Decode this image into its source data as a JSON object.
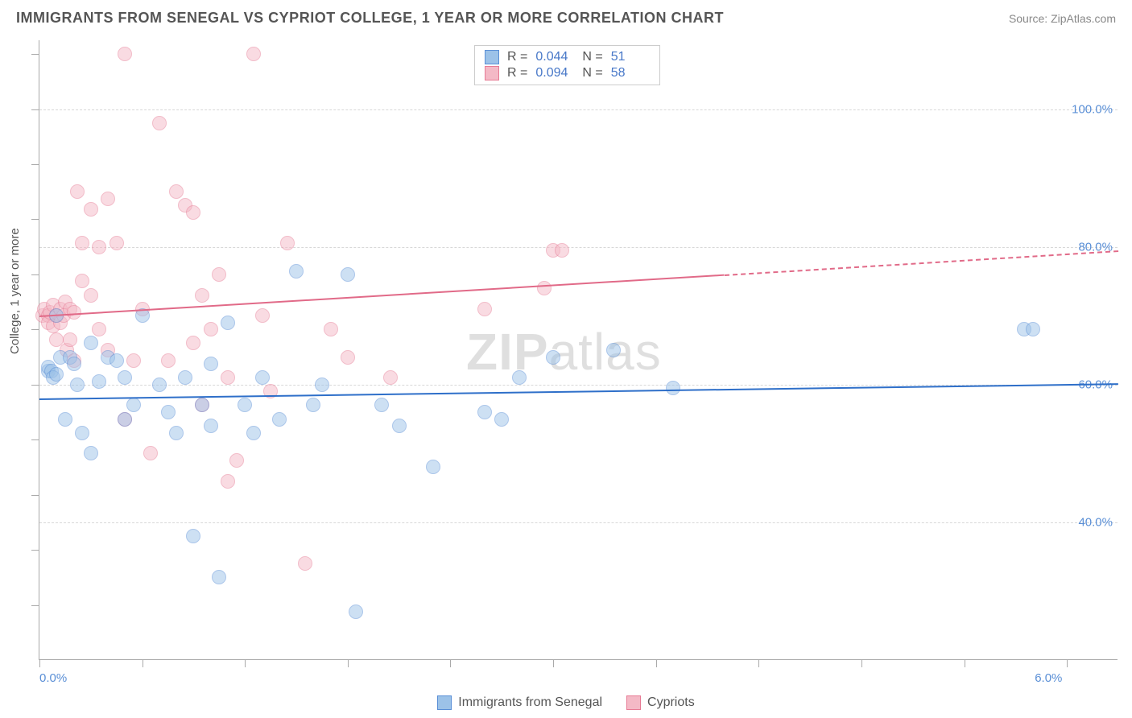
{
  "title": "IMMIGRANTS FROM SENEGAL VS CYPRIOT COLLEGE, 1 YEAR OR MORE CORRELATION CHART",
  "source": "Source: ZipAtlas.com",
  "yaxis_title": "College, 1 year or more",
  "watermark": "ZIPatlas",
  "chart": {
    "type": "scatter",
    "xlim": [
      0.0,
      6.3
    ],
    "ylim": [
      20.0,
      110.0
    ],
    "background_color": "#ffffff",
    "grid_color": "#d8d8d8",
    "axis_color": "#aaaaaa",
    "y_gridlines": [
      40.0,
      60.0,
      80.0,
      100.0
    ],
    "y_labels": [
      "40.0%",
      "60.0%",
      "80.0%",
      "100.0%"
    ],
    "x_ticks": [
      0.0,
      0.6,
      1.2,
      1.8,
      2.4,
      3.0,
      3.6,
      4.2,
      4.8,
      5.4,
      6.0
    ],
    "x_labels": {
      "0.0": "0.0%",
      "6.0": "6.0%"
    },
    "y_ticks": [
      28,
      36,
      44,
      52,
      60,
      68,
      76,
      84,
      92,
      100,
      108
    ],
    "marker_radius": 9,
    "marker_opacity": 0.5,
    "label_fontsize": 15,
    "label_color": "#5a8fd6"
  },
  "series": [
    {
      "name": "Immigrants from Senegal",
      "fill_color": "#9cc2e8",
      "stroke_color": "#5a8fd6",
      "line_color": "#2e6fc9",
      "R": "0.044",
      "N": "51",
      "trend": {
        "x1": 0.0,
        "y1": 58.0,
        "x2": 6.3,
        "y2": 60.2,
        "dash_from_x": 6.3
      },
      "points": [
        [
          0.05,
          62
        ],
        [
          0.05,
          62.5
        ],
        [
          0.07,
          62
        ],
        [
          0.08,
          61
        ],
        [
          0.1,
          61.5
        ],
        [
          0.1,
          70
        ],
        [
          0.12,
          64
        ],
        [
          0.15,
          55
        ],
        [
          0.18,
          64
        ],
        [
          0.2,
          63
        ],
        [
          0.22,
          60
        ],
        [
          0.25,
          53
        ],
        [
          0.3,
          66
        ],
        [
          0.3,
          50
        ],
        [
          0.35,
          60.5
        ],
        [
          0.4,
          64
        ],
        [
          0.45,
          63.5
        ],
        [
          0.5,
          55
        ],
        [
          0.5,
          61
        ],
        [
          0.55,
          57
        ],
        [
          0.6,
          70
        ],
        [
          0.7,
          60
        ],
        [
          0.75,
          56
        ],
        [
          0.8,
          53
        ],
        [
          0.85,
          61
        ],
        [
          0.9,
          38
        ],
        [
          0.95,
          57
        ],
        [
          1.0,
          54
        ],
        [
          1.0,
          63
        ],
        [
          1.05,
          32
        ],
        [
          1.1,
          69
        ],
        [
          1.2,
          57
        ],
        [
          1.25,
          53
        ],
        [
          1.3,
          61
        ],
        [
          1.4,
          55
        ],
        [
          1.5,
          76.5
        ],
        [
          1.6,
          57
        ],
        [
          1.65,
          60
        ],
        [
          1.8,
          76
        ],
        [
          1.85,
          27
        ],
        [
          2.0,
          57
        ],
        [
          2.1,
          54
        ],
        [
          2.3,
          48
        ],
        [
          2.6,
          56
        ],
        [
          2.7,
          55
        ],
        [
          2.8,
          61
        ],
        [
          3.0,
          64
        ],
        [
          3.35,
          65
        ],
        [
          3.7,
          59.5
        ],
        [
          5.75,
          68
        ],
        [
          5.8,
          68
        ]
      ]
    },
    {
      "name": "Cypriots",
      "fill_color": "#f4b9c6",
      "stroke_color": "#e77b95",
      "line_color": "#e16a88",
      "R": "0.094",
      "N": "58",
      "trend": {
        "x1": 0.0,
        "y1": 70.0,
        "x2": 4.0,
        "y2": 76.0,
        "dash_from_x": 4.0,
        "dash_to_x": 6.3,
        "dash_to_y": 79.5
      },
      "points": [
        [
          0.02,
          70
        ],
        [
          0.03,
          71
        ],
        [
          0.05,
          70
        ],
        [
          0.05,
          69
        ],
        [
          0.06,
          70.5
        ],
        [
          0.08,
          71.5
        ],
        [
          0.08,
          68.5
        ],
        [
          0.1,
          70
        ],
        [
          0.1,
          66.5
        ],
        [
          0.12,
          71
        ],
        [
          0.12,
          69
        ],
        [
          0.14,
          70
        ],
        [
          0.15,
          72
        ],
        [
          0.16,
          65
        ],
        [
          0.18,
          71
        ],
        [
          0.18,
          66.5
        ],
        [
          0.2,
          70.5
        ],
        [
          0.2,
          63.5
        ],
        [
          0.22,
          88
        ],
        [
          0.25,
          75
        ],
        [
          0.25,
          80.5
        ],
        [
          0.3,
          73
        ],
        [
          0.3,
          85.5
        ],
        [
          0.35,
          80
        ],
        [
          0.35,
          68
        ],
        [
          0.4,
          65
        ],
        [
          0.4,
          87
        ],
        [
          0.45,
          80.5
        ],
        [
          0.5,
          108
        ],
        [
          0.5,
          55
        ],
        [
          0.55,
          63.5
        ],
        [
          0.6,
          71
        ],
        [
          0.65,
          50
        ],
        [
          0.7,
          98
        ],
        [
          0.75,
          63.5
        ],
        [
          0.8,
          88
        ],
        [
          0.85,
          86
        ],
        [
          0.9,
          66
        ],
        [
          0.9,
          85
        ],
        [
          0.95,
          57
        ],
        [
          0.95,
          73
        ],
        [
          1.0,
          68
        ],
        [
          1.05,
          76
        ],
        [
          1.1,
          46
        ],
        [
          1.1,
          61
        ],
        [
          1.15,
          49
        ],
        [
          1.25,
          108
        ],
        [
          1.3,
          70
        ],
        [
          1.35,
          59
        ],
        [
          1.45,
          80.5
        ],
        [
          1.55,
          34
        ],
        [
          1.7,
          68
        ],
        [
          1.8,
          64
        ],
        [
          2.05,
          61
        ],
        [
          2.6,
          71
        ],
        [
          2.95,
          74
        ],
        [
          3.0,
          79.5
        ],
        [
          3.05,
          79.5
        ]
      ]
    }
  ],
  "stats_box": {
    "rows": [
      {
        "swatch_fill": "#9cc2e8",
        "swatch_stroke": "#5a8fd6",
        "r_label": "R =",
        "r_val": "0.044",
        "n_label": "N =",
        "n_val": "51"
      },
      {
        "swatch_fill": "#f4b9c6",
        "swatch_stroke": "#e77b95",
        "r_label": "R =",
        "r_val": "0.094",
        "n_label": "N =",
        "n_val": "58"
      }
    ]
  },
  "bottom_legend": [
    {
      "swatch_fill": "#9cc2e8",
      "swatch_stroke": "#5a8fd6",
      "label": "Immigrants from Senegal"
    },
    {
      "swatch_fill": "#f4b9c6",
      "swatch_stroke": "#e77b95",
      "label": "Cypriots"
    }
  ]
}
